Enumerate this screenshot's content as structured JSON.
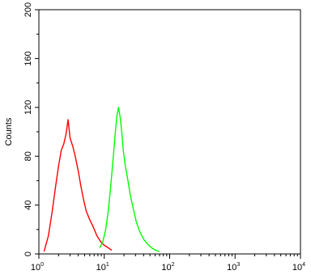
{
  "chart_data": {
    "type": "line",
    "title": "",
    "xlabel": "",
    "ylabel": "Counts",
    "xscale": "log",
    "xlim": [
      1,
      10000
    ],
    "ylim": [
      0,
      200
    ],
    "grid": false,
    "legend": "none",
    "x_ticks": [
      {
        "value": 1,
        "base": "10",
        "exp": "0"
      },
      {
        "value": 10,
        "base": "10",
        "exp": "1"
      },
      {
        "value": 100,
        "base": "10",
        "exp": "2"
      },
      {
        "value": 1000,
        "base": "10",
        "exp": "3"
      },
      {
        "value": 10000,
        "base": "10",
        "exp": "4"
      }
    ],
    "y_ticks": [
      {
        "value": 0,
        "label": "0"
      },
      {
        "value": 40,
        "label": "40"
      },
      {
        "value": 80,
        "label": "80"
      },
      {
        "value": 120,
        "label": "120"
      },
      {
        "value": 160,
        "label": "160"
      },
      {
        "value": 200,
        "label": "200"
      }
    ],
    "series": [
      {
        "color": "#ff0000",
        "x": [
          1.2,
          1.4,
          1.6,
          1.8,
          2.0,
          2.2,
          2.4,
          2.6,
          2.8,
          3.0,
          3.3,
          3.6,
          4.0,
          4.4,
          4.8,
          5.3,
          6.0,
          6.8,
          7.7,
          8.8,
          10,
          11.5,
          13
        ],
        "y": [
          2,
          15,
          35,
          55,
          72,
          85,
          90,
          98,
          110,
          95,
          88,
          80,
          68,
          55,
          45,
          35,
          28,
          22,
          15,
          10,
          7,
          5,
          3
        ]
      },
      {
        "color": "#00ff00",
        "x": [
          8.5,
          9.5,
          10.5,
          11.5,
          12.5,
          13.5,
          14.5,
          15.5,
          16.5,
          17.5,
          18.5,
          19.5,
          21,
          23,
          25,
          28,
          31,
          35,
          40,
          46,
          53,
          61,
          70
        ],
        "y": [
          5,
          10,
          20,
          35,
          55,
          75,
          95,
          112,
          120,
          112,
          100,
          85,
          72,
          60,
          48,
          36,
          26,
          18,
          12,
          8,
          5,
          3,
          2
        ]
      }
    ]
  }
}
